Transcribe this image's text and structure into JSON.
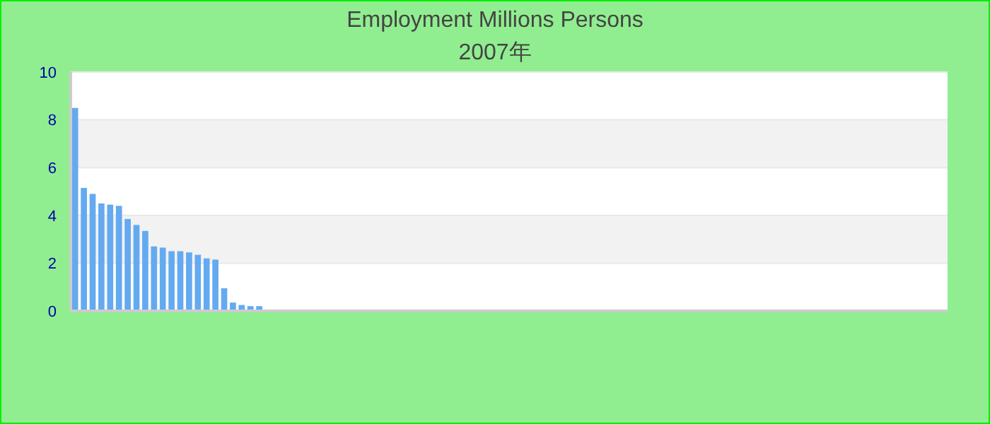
{
  "chart_data": {
    "type": "bar",
    "title": "Employment Millions Persons",
    "subtitle": "2007年",
    "categories": [
      null,
      null,
      null,
      null,
      null,
      null,
      null,
      null,
      null,
      null,
      null,
      null,
      null,
      null,
      null,
      null,
      null,
      null,
      null,
      null,
      null,
      null,
      null,
      null,
      null,
      null,
      null,
      null,
      null,
      null,
      null,
      null,
      null,
      null,
      null,
      null,
      null,
      null,
      null,
      null,
      null,
      null,
      null,
      null,
      null,
      null,
      null,
      null,
      null,
      null,
      null,
      null,
      null,
      null,
      null,
      null,
      null,
      null,
      null,
      null,
      null,
      null,
      null,
      null,
      null,
      null,
      null,
      null,
      null,
      null,
      null,
      null,
      null,
      null,
      null,
      null,
      null,
      null,
      null,
      null,
      null,
      null,
      null,
      null,
      null,
      null,
      null,
      null,
      null,
      null,
      null,
      null,
      null,
      null,
      null,
      null,
      null,
      null,
      null,
      null
    ],
    "values": [
      8.5,
      5.15,
      4.9,
      4.5,
      4.45,
      4.4,
      3.85,
      3.6,
      3.35,
      2.7,
      2.65,
      2.5,
      2.5,
      2.45,
      2.35,
      2.2,
      2.15,
      0.95,
      0.35,
      0.25,
      0.2,
      0.2,
      0,
      0,
      0,
      0,
      0,
      0,
      0,
      0,
      0,
      0,
      0,
      0,
      0,
      0,
      0,
      0,
      0,
      0,
      0,
      0,
      0,
      0,
      0,
      0,
      0,
      0,
      0,
      0,
      0,
      0,
      0,
      0,
      0,
      0,
      0,
      0,
      0,
      0,
      0,
      0,
      0,
      0,
      0,
      0,
      0,
      0,
      0,
      0,
      0,
      0,
      0,
      0,
      0,
      0,
      0,
      0,
      0,
      0,
      0,
      0,
      0,
      0,
      0,
      0,
      0,
      0,
      0,
      0,
      0,
      0,
      0,
      0,
      0,
      0,
      0,
      0,
      0,
      0
    ],
    "color": "#64aaf0",
    "ylim": [
      0,
      10
    ],
    "yticks": [
      0,
      2,
      4,
      6,
      8,
      10
    ],
    "grid": "y"
  }
}
